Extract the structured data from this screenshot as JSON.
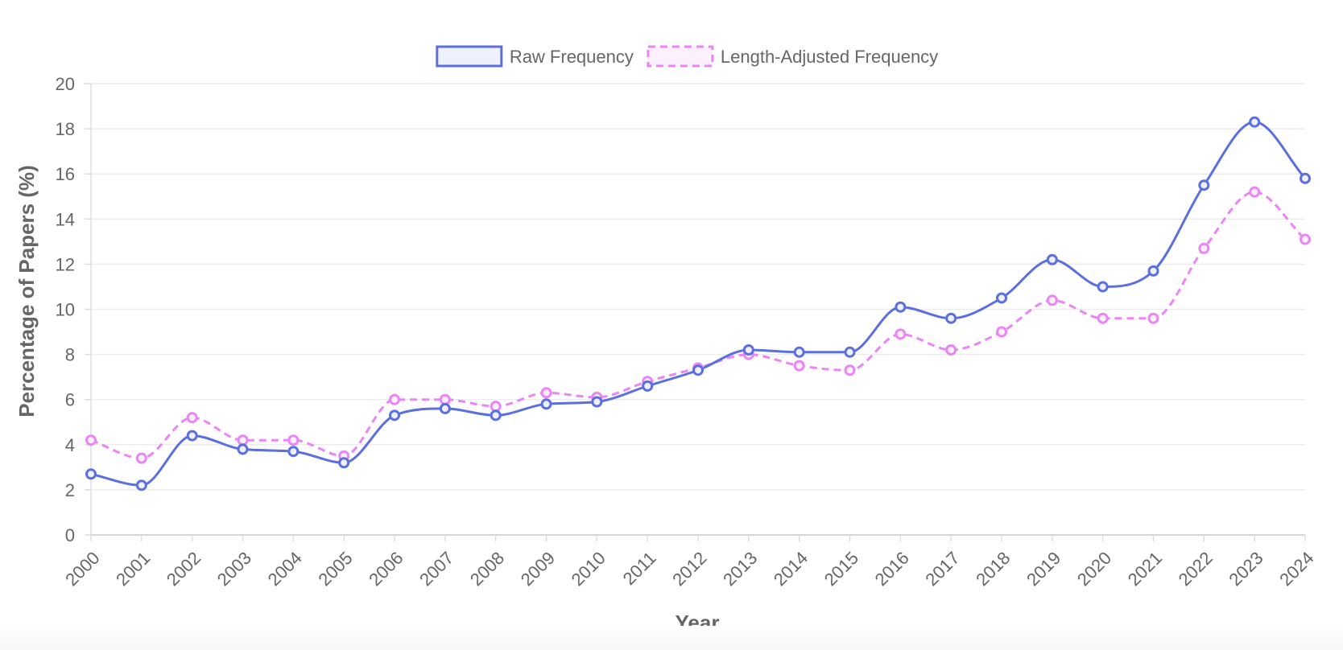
{
  "chart_data": {
    "type": "line",
    "title": "",
    "xlabel": "Year",
    "ylabel": "Percentage of Papers (%)",
    "ylim": [
      0,
      20
    ],
    "yticks": [
      0,
      2,
      4,
      6,
      8,
      10,
      12,
      14,
      16,
      18,
      20
    ],
    "grid": true,
    "legend_position": "top-center",
    "categories": [
      "2000",
      "2001",
      "2002",
      "2003",
      "2004",
      "2005",
      "2006",
      "2007",
      "2008",
      "2009",
      "2010",
      "2011",
      "2012",
      "2013",
      "2014",
      "2015",
      "2016",
      "2017",
      "2018",
      "2019",
      "2020",
      "2021",
      "2022",
      "2023",
      "2024"
    ],
    "series": [
      {
        "name": "Raw Frequency",
        "color": "#5b6fe0",
        "fill": "#eef0fc",
        "dashed": false,
        "values": [
          2.7,
          2.2,
          4.4,
          3.8,
          3.7,
          3.2,
          5.3,
          5.6,
          5.3,
          5.8,
          5.9,
          6.6,
          7.3,
          8.2,
          8.1,
          8.1,
          10.1,
          9.6,
          10.5,
          12.2,
          11.0,
          11.7,
          15.5,
          18.3,
          15.8
        ]
      },
      {
        "name": "Length-Adjusted Frequency",
        "color": "#ea85f5",
        "fill": "#fdf0fe",
        "dashed": true,
        "values": [
          4.2,
          3.4,
          5.2,
          4.2,
          4.2,
          3.5,
          6.0,
          6.0,
          5.7,
          6.3,
          6.1,
          6.8,
          7.4,
          8.0,
          7.5,
          7.3,
          8.9,
          8.2,
          9.0,
          10.4,
          9.6,
          9.6,
          12.7,
          15.2,
          13.1
        ]
      }
    ]
  }
}
